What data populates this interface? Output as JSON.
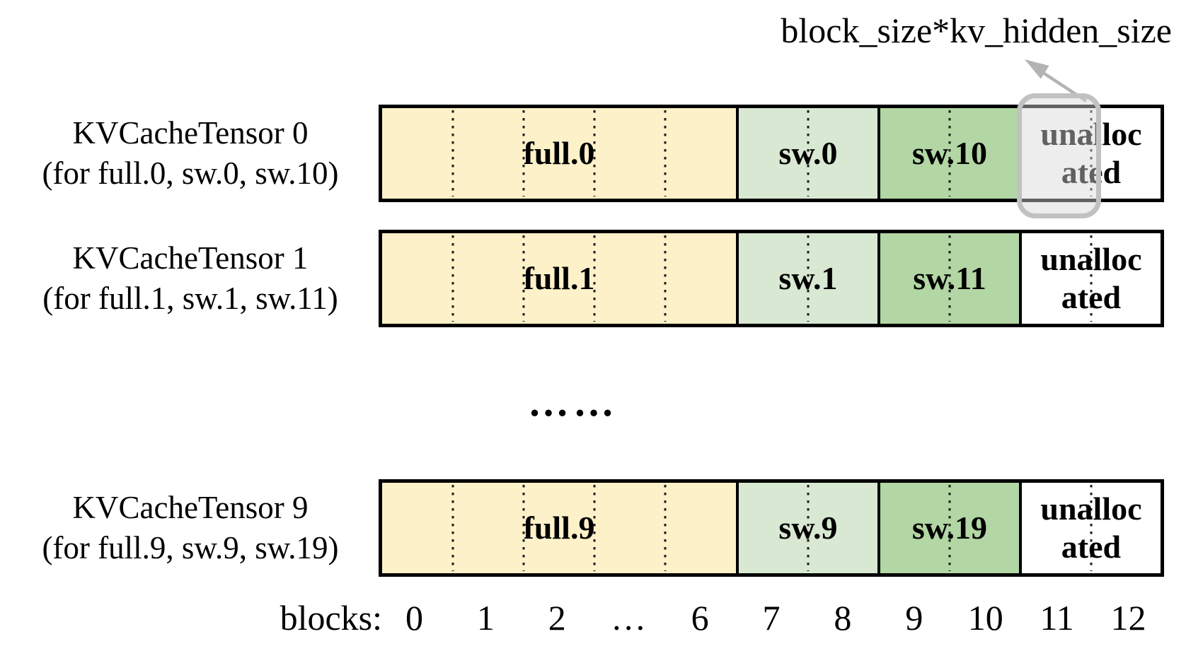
{
  "annotation": {
    "label": "block_size*kv_hidden_size"
  },
  "rows": [
    {
      "title": "KVCacheTensor 0",
      "subtitle": "(for full.0, sw.0, sw.10)",
      "cells": [
        {
          "label": "full.0"
        },
        {
          "label": "sw.0"
        },
        {
          "label": "sw.10"
        },
        {
          "label": "unallocated"
        }
      ],
      "highlighted": true
    },
    {
      "title": "KVCacheTensor 1",
      "subtitle": "(for full.1, sw.1, sw.11)",
      "cells": [
        {
          "label": "full.1"
        },
        {
          "label": "sw.1"
        },
        {
          "label": "sw.11"
        },
        {
          "label": "unallocated"
        }
      ],
      "highlighted": false
    },
    {
      "title": "KVCacheTensor 9",
      "subtitle": "(for full.9, sw.9, sw.19)",
      "cells": [
        {
          "label": "full.9"
        },
        {
          "label": "sw.9"
        },
        {
          "label": "sw.19"
        },
        {
          "label": "unallocated"
        }
      ],
      "highlighted": false
    }
  ],
  "ellipsis": "……",
  "axis": {
    "label": "blocks:",
    "ticks": [
      "0",
      "1",
      "2",
      "…",
      "6",
      "7",
      "8",
      "9",
      "10",
      "11",
      "12"
    ]
  },
  "colors": {
    "full_block": "#FDF1C9",
    "sw_block": "#D8E8D2",
    "sw_hi_block": "#B2D6A4",
    "unallocated_block": "#FFFFFF",
    "highlight_border": "#C1C1C1",
    "arrow": "#B3B3B3"
  }
}
